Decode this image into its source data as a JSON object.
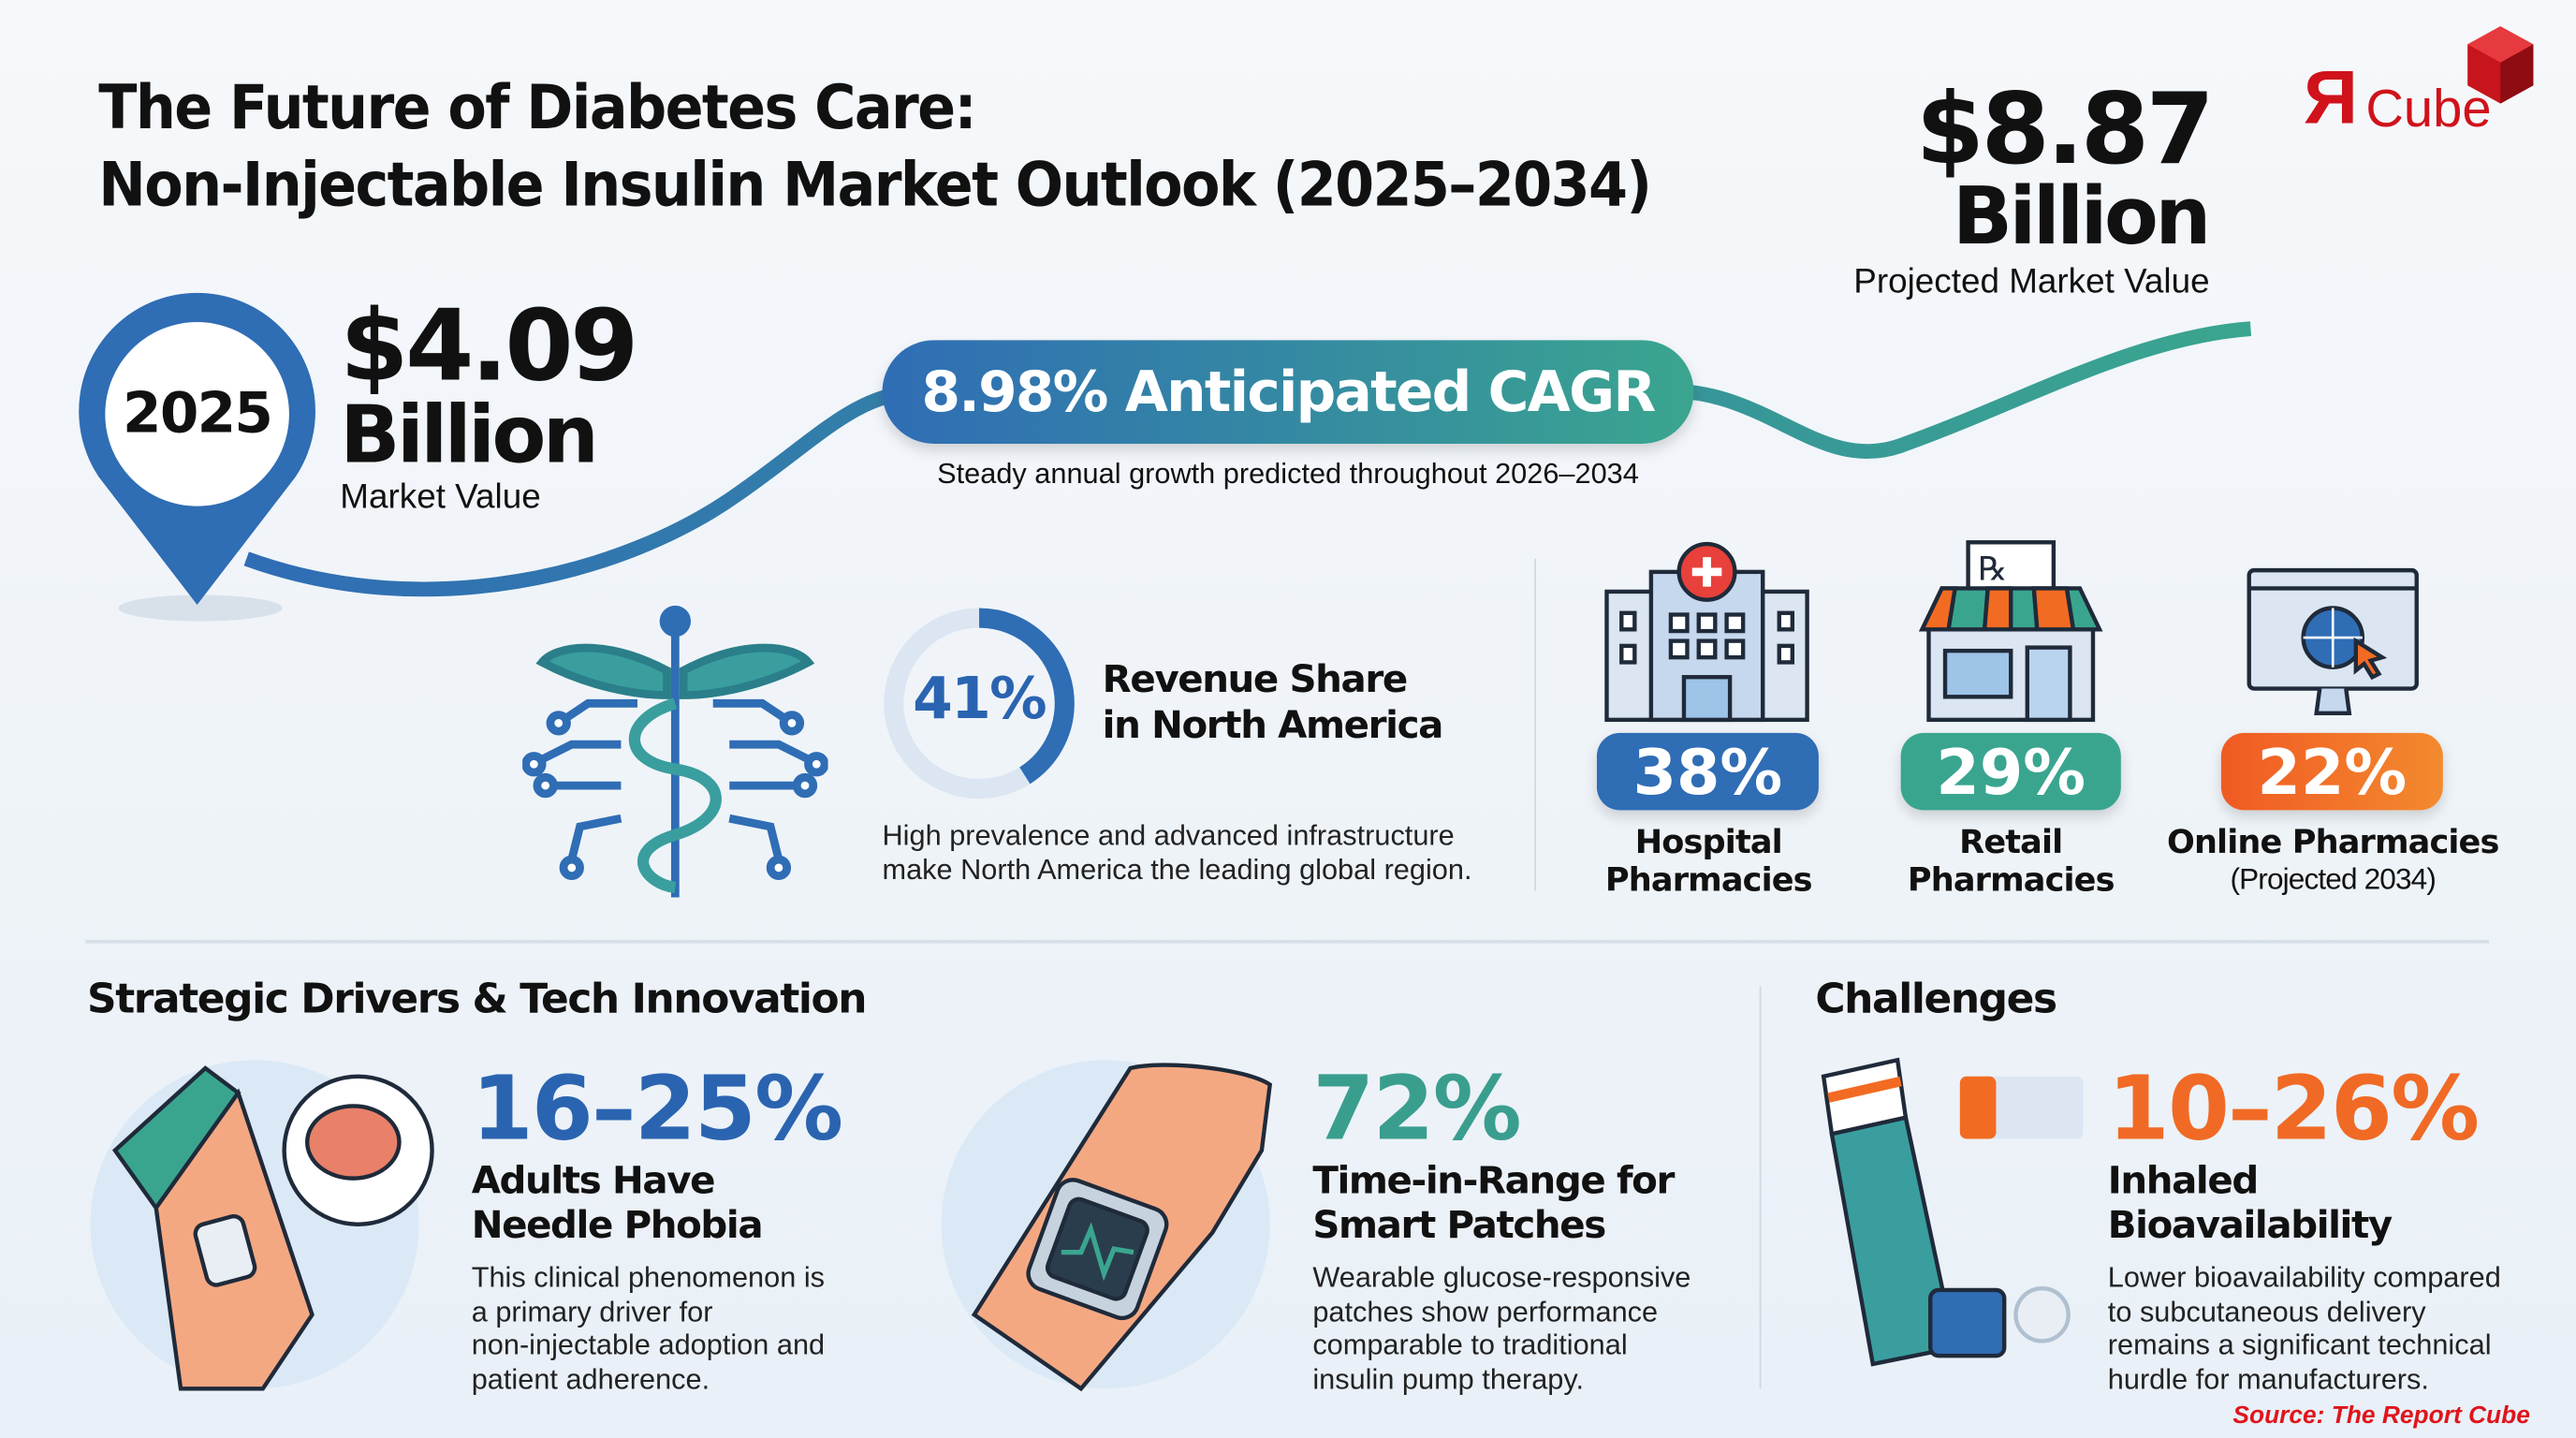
{
  "header": {
    "title_line1": "The Future of Diabetes Care:",
    "title_line2": "Non-Injectable Insulin Market Outlook (2025–2034)"
  },
  "logo": {
    "text_r": "R",
    "text_cube": "Cube",
    "color": "#d0121b"
  },
  "projected": {
    "value": "$8.87",
    "unit": "Billion",
    "label": "Projected Market Value"
  },
  "current": {
    "year": "2025",
    "value": "$4.09",
    "unit": "Billion",
    "label": "Market Value"
  },
  "cagr": {
    "label": "8.98% Anticipated CAGR",
    "note": "Steady annual growth predicted throughout 2026–2034"
  },
  "region": {
    "percent": "41%",
    "percent_value": 41,
    "title_line1": "Revenue Share",
    "title_line2": "in North America",
    "desc_line1": "High prevalence and advanced infrastructure",
    "desc_line2": "make North America the leading global region."
  },
  "channels": [
    {
      "percent": "38%",
      "line1": "Hospital",
      "line2": "Pharmacies",
      "icon": "hospital-icon",
      "color": "#2f6db5"
    },
    {
      "percent": "29%",
      "line1": "Retail",
      "line2": "Pharmacies",
      "icon": "store-icon",
      "color": "#3aa58f"
    },
    {
      "percent": "22%",
      "line1": "Online Pharmacies",
      "line2": "(Projected 2034)",
      "icon": "online-monitor-icon",
      "color": "#f26b22"
    }
  ],
  "sections": {
    "drivers": "Strategic Drivers & Tech Innovation",
    "challenges": "Challenges"
  },
  "cards": [
    {
      "percent": "16–25%",
      "title1": "Adults Have",
      "title2": "Needle Phobia",
      "desc": [
        "This clinical phenomenon is",
        "a primary driver for",
        "non-injectable adoption and",
        "patient adherence."
      ],
      "color": "#2a64b0"
    },
    {
      "percent": "72%",
      "title1": "Time-in-Range for",
      "title2": "Smart Patches",
      "desc": [
        "Wearable glucose-responsive",
        "patches show performance",
        "comparable to traditional",
        "insulin pump therapy."
      ],
      "color": "#3a9e8e"
    },
    {
      "percent": "10–26%",
      "title1": "Inhaled",
      "title2": "Bioavailability",
      "desc": [
        "Lower bioavailability compared",
        "to subcutaneous delivery",
        "remains a significant technical",
        "hurdle for manufacturers."
      ],
      "color": "#f06a25"
    }
  ],
  "source": "Source: The Report Cube"
}
